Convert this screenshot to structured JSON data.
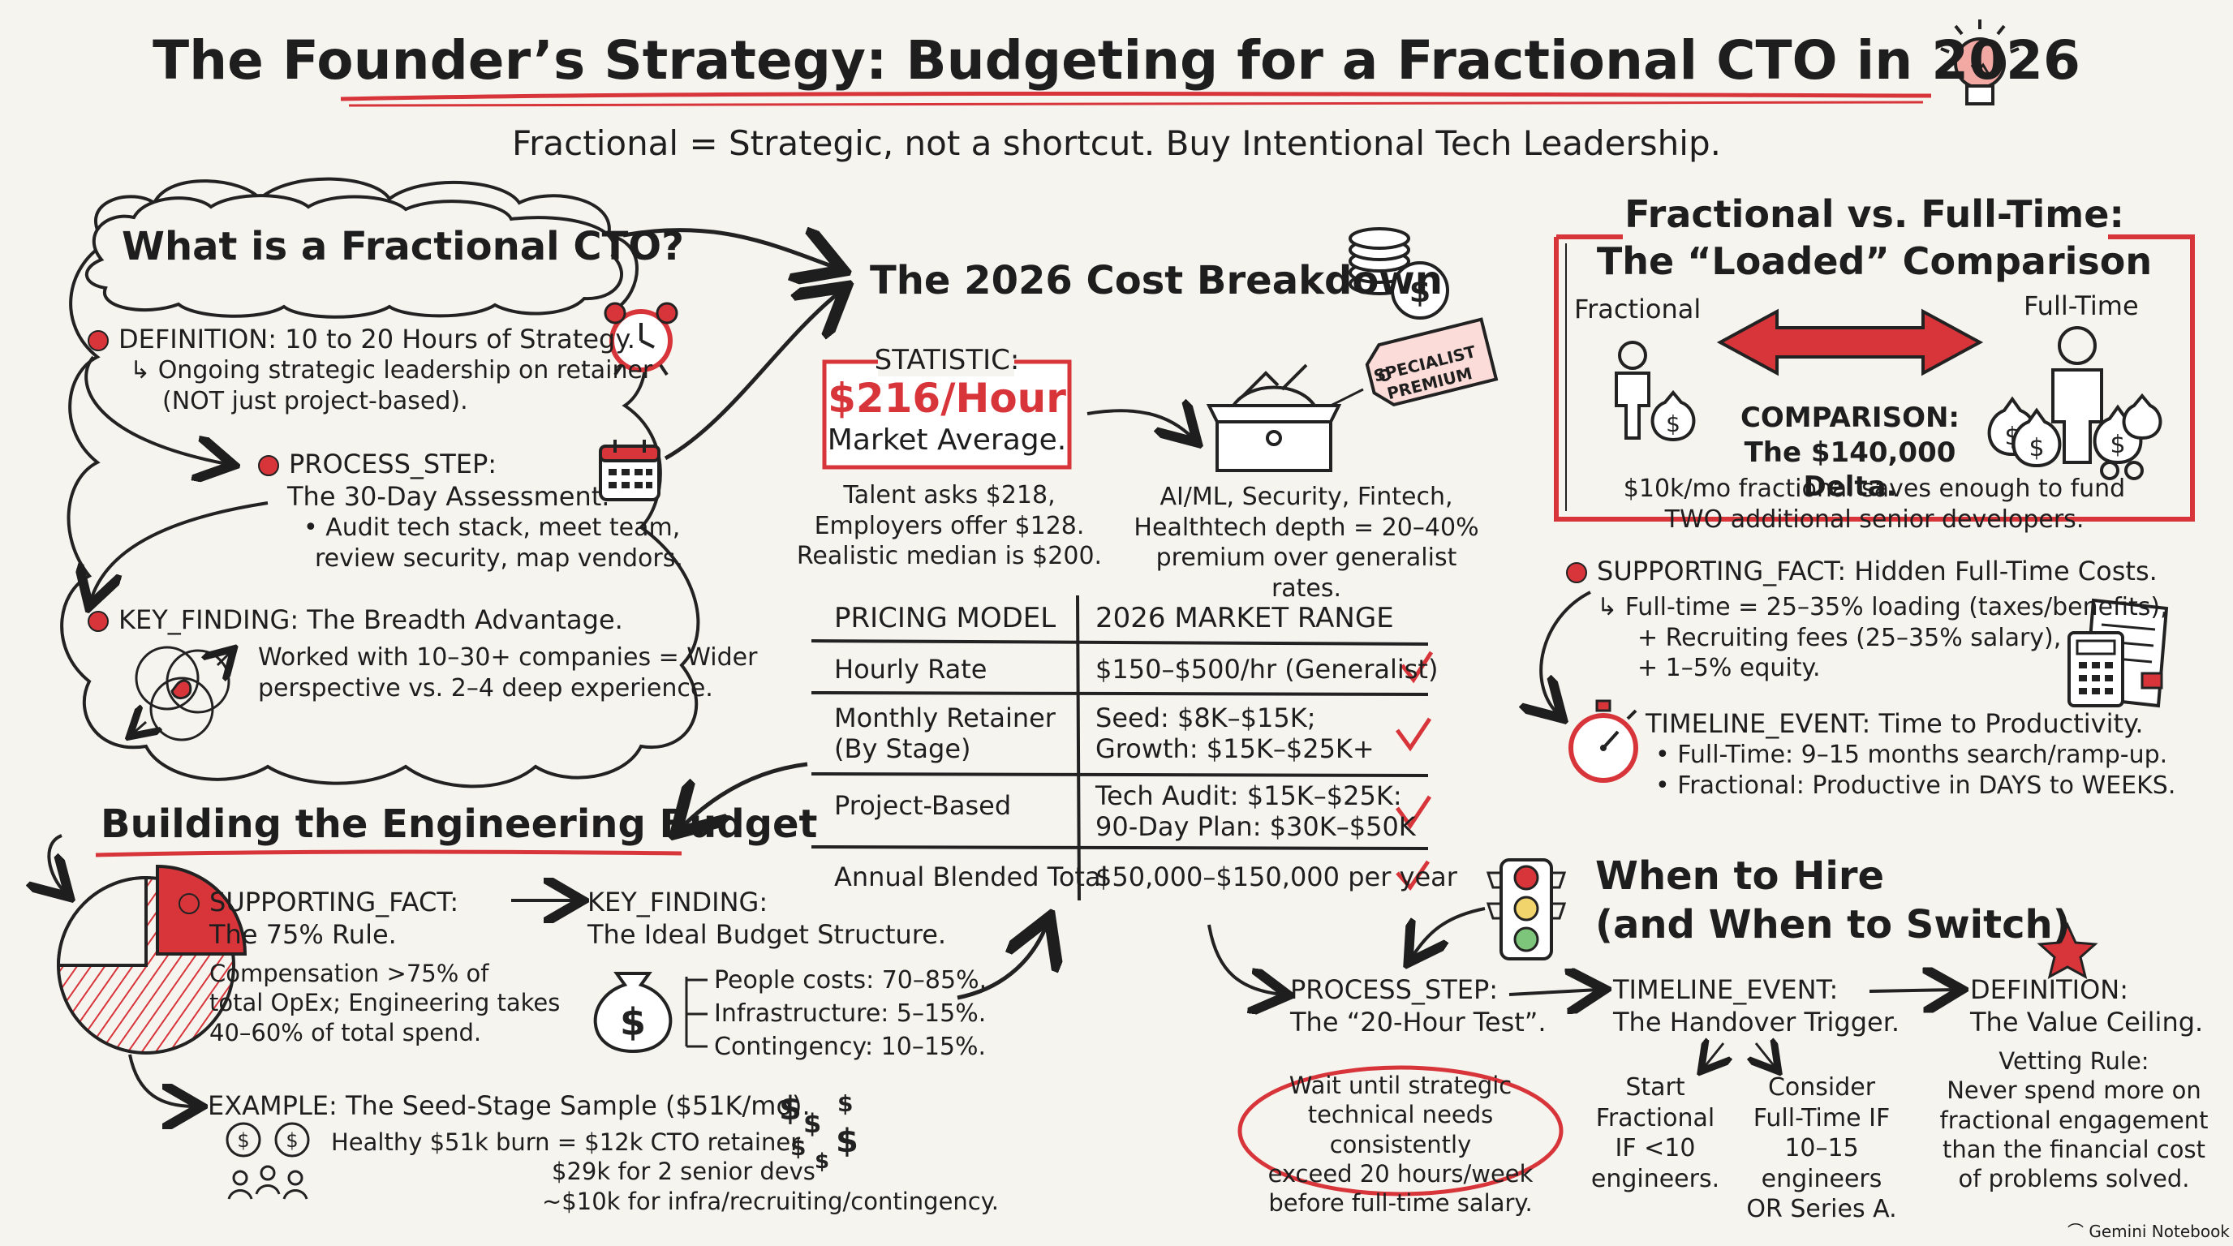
{
  "header": {
    "title": "The Founder’s Strategy: Budgeting for a Fractional CTO in 2026",
    "subtitle": "Fractional = Strategic, not a shortcut. Buy Intentional Tech Leadership."
  },
  "what_is": {
    "heading": "What is a Fractional CTO?",
    "definition": {
      "label": "DEFINITION: 10 to 20 Hours of Strategy.",
      "line1": "Ongoing strategic leadership on retainer",
      "line2": "(NOT just project-based)."
    },
    "process": {
      "label1": "PROCESS_STEP:",
      "label2": "The 30-Day Assessment.",
      "bullet1": "• Audit tech stack, meet team,",
      "bullet2": "review security, map vendors."
    },
    "finding": {
      "label": "KEY_FINDING: The Breadth Advantage.",
      "line1": "Worked with 10–30+ companies = Wider",
      "line2": "perspective vs. 2–4 deep experience."
    }
  },
  "cost": {
    "heading": "The 2026 Cost Breakdown",
    "stat_label": "STATISTIC:",
    "stat_value": "$216/Hour",
    "stat_sub": "Market Average.",
    "talent1": "Talent asks $218,",
    "talent2": "Employers offer $128.",
    "talent3": "Realistic median is $200.",
    "tag1": "SPECIALIST",
    "tag2": "PREMIUM",
    "spec1": "AI/ML, Security, Fintech,",
    "spec2": "Healthtech depth = 20–40%",
    "spec3": "premium over generalist rates."
  },
  "pricing_table": {
    "headers": [
      "PRICING MODEL",
      "2026 MARKET RANGE"
    ],
    "rows": [
      {
        "model": [
          "Hourly Rate"
        ],
        "range": [
          "$150–$500/hr (Generalist)"
        ],
        "check": "✓"
      },
      {
        "model": [
          "Monthly Retainer",
          "(By Stage)"
        ],
        "range": [
          "Seed: $8K–$15K;",
          "Growth: $15K–$25K+"
        ],
        "check": "✓"
      },
      {
        "model": [
          "Project-Based"
        ],
        "range": [
          "Tech Audit: $15K–$25K:",
          "90-Day Plan: $30K–$50K"
        ],
        "check": "✓"
      },
      {
        "model": [
          "Annual Blended Total"
        ],
        "range": [
          "$50,000–$150,000 per year"
        ],
        "check": "✓"
      }
    ]
  },
  "comparison": {
    "heading1": "Fractional vs. Full-Time:",
    "heading2": "The “Loaded” Comparison",
    "left_label": "Fractional",
    "right_label": "Full-Time",
    "comp1": "COMPARISON:",
    "comp2": "The $140,000 Delta.",
    "note1": "$10k/mo fractional saves enough to fund",
    "note2": "TWO additional senior developers."
  },
  "hidden_costs": {
    "label": "SUPPORTING_FACT: Hidden Full-Time Costs.",
    "line1": "Full-time = 25–35% loading (taxes/benefits),",
    "line2": "+ Recruiting fees (25–35% salary),",
    "line3": "+ 1–5% equity."
  },
  "productivity": {
    "label": "TIMELINE_EVENT: Time to Productivity.",
    "b1": "• Full-Time: 9–15 months search/ramp-up.",
    "b2": "• Fractional: Productive in DAYS to WEEKS."
  },
  "budget": {
    "heading": "Building the Engineering Budget",
    "fact_label1": "SUPPORTING_FACT:",
    "fact_label2": "The 75% Rule.",
    "fact1": "Compensation >75% of",
    "fact2": "total OpEx; Engineering takes",
    "fact3": "40–60% of total spend.",
    "kf_label1": "KEY_FINDING:",
    "kf_label2": "The Ideal Budget Structure.",
    "people": "People costs: 70–85%.",
    "infra": "Infrastructure: 5–15%.",
    "contingency": "Contingency: 10–15%.",
    "example_label": "EXAMPLE: The Seed-Stage Sample ($51K/mo).",
    "ex1": "Healthy $51k burn = $12k CTO retainer",
    "ex2": "$29k for 2 senior devs",
    "ex3": "~$10k for infra/recruiting/contingency."
  },
  "hire": {
    "heading1": "When to Hire",
    "heading2": "(and When to Switch)",
    "p_label1": "PROCESS_STEP:",
    "p_label2": "The “20-Hour Test”.",
    "p1": "Wait until strategic",
    "p2": "technical needs consistently",
    "p3": "exceed 20 hours/week",
    "p4": "before full-time salary.",
    "t_label1": "TIMELINE_EVENT:",
    "t_label2": "The Handover Trigger.",
    "s1": "Start",
    "s2": "Fractional",
    "s3": "IF <10",
    "s4": "engineers.",
    "c1": "Consider",
    "c2": "Full-Time IF",
    "c3": "10–15 engineers",
    "c4": "OR Series A.",
    "d_label1": "DEFINITION:",
    "d_label2": "The Value Ceiling.",
    "v1": "Vetting Rule:",
    "v2": "Never spend more on",
    "v3": "fractional engagement",
    "v4": "than the financial cost",
    "v5": "of problems solved."
  },
  "footer": {
    "brand": "Gemini Notebook"
  },
  "pie_chart": {
    "compensation_share": 75
  },
  "colors": {
    "accent": "#d8353b",
    "ink": "#1e1e1e",
    "paper": "#f6f4ef"
  }
}
